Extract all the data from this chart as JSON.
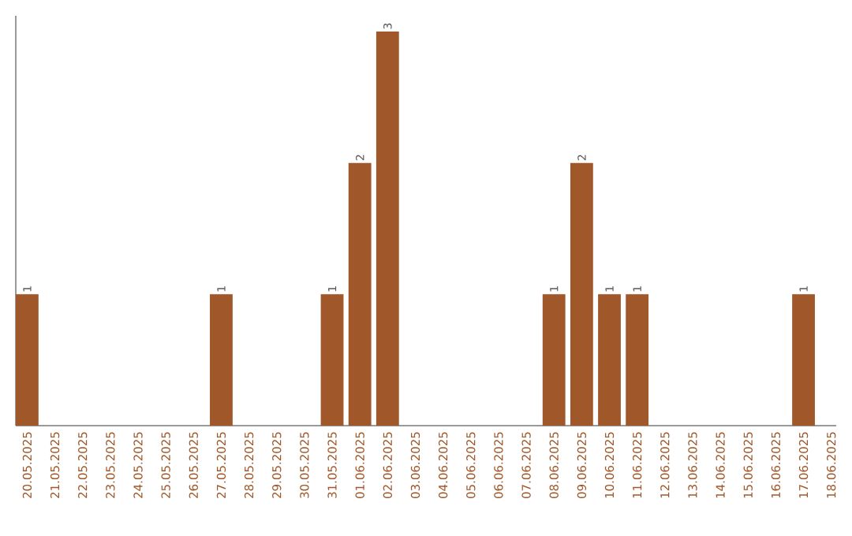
{
  "chart_data": {
    "type": "bar",
    "categories": [
      "20.05.2025",
      "21.05.2025",
      "22.05.2025",
      "23.05.2025",
      "24.05.2025",
      "25.05.2025",
      "26.05.2025",
      "27.05.2025",
      "28.05.2025",
      "29.05.2025",
      "30.05.2025",
      "31.05.2025",
      "01.06.2025",
      "02.06.2025",
      "03.06.2025",
      "04.06.2025",
      "05.06.2025",
      "06.06.2025",
      "07.06.2025",
      "08.06.2025",
      "09.06.2025",
      "10.06.2025",
      "11.06.2025",
      "12.06.2025",
      "13.06.2025",
      "14.06.2025",
      "15.06.2025",
      "16.06.2025",
      "17.06.2025",
      "18.06.2025"
    ],
    "values": [
      1,
      0,
      0,
      0,
      0,
      0,
      0,
      1,
      0,
      0,
      0,
      1,
      2,
      3,
      0,
      0,
      0,
      0,
      0,
      1,
      2,
      1,
      1,
      0,
      0,
      0,
      0,
      0,
      1,
      0
    ],
    "value_labels": [
      "1",
      null,
      null,
      null,
      null,
      null,
      null,
      "1",
      null,
      null,
      null,
      "1",
      "2",
      "3",
      null,
      null,
      null,
      null,
      null,
      "1",
      "2",
      "1",
      "1",
      null,
      null,
      null,
      null,
      null,
      "1",
      null
    ],
    "color": "#a0582a"
  }
}
